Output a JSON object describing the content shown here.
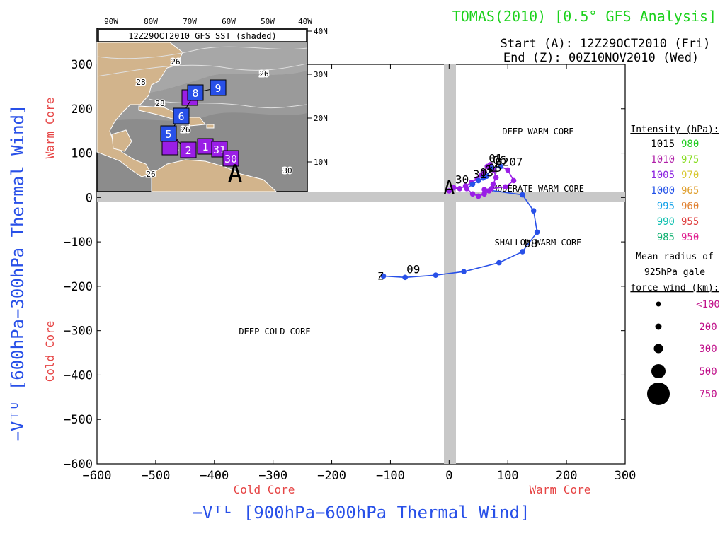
{
  "header": {
    "title": "TOMAS(2010) [0.5° GFS Analysis]",
    "start": "Start (A): 12Z29OCT2010 (Fri)",
    "end": "End (Z): 00Z10NOV2010 (Wed)"
  },
  "chart_data": {
    "type": "line",
    "xlabel": "−Vᵀᴸ [900hPa−600hPa Thermal Wind]",
    "ylabel": "−Vᵀᵁ [600hPa−300hPa Thermal Wind]",
    "xlim": [
      -600,
      300
    ],
    "ylim": [
      -600,
      300
    ],
    "xticks": [
      -600,
      -500,
      -400,
      -300,
      -200,
      -100,
      0,
      100,
      200,
      300
    ],
    "yticks": [
      -600,
      -500,
      -400,
      -300,
      -200,
      -100,
      0,
      100,
      200,
      300
    ],
    "xtick_labels": [
      "−600",
      "−500",
      "−400",
      "−300",
      "−200",
      "−100",
      "0",
      "100",
      "200",
      "300"
    ],
    "ytick_labels": [
      "−600",
      "−500",
      "−400",
      "−300",
      "−200",
      "−100",
      "0",
      "100",
      "200",
      "300"
    ],
    "x_core_labels": {
      "negative": "Cold Core",
      "positive": "Warm Core"
    },
    "y_core_labels": {
      "negative": "Cold Core",
      "positive": "Warm Core"
    },
    "regions": [
      "DEEP WARM CORE",
      "MODERATE WARM CORE",
      "SHALLOW WARM-CORE",
      "DEEP COLD CORE"
    ],
    "track": [
      {
        "x": 0,
        "y": 15,
        "color": "#9a1ee6",
        "label": "A"
      },
      {
        "x": 8,
        "y": 22,
        "color": "#9a1ee6",
        "label": "30"
      },
      {
        "x": 18,
        "y": 20,
        "color": "#9a1ee6"
      },
      {
        "x": 28,
        "y": 26,
        "color": "#9a1ee6"
      },
      {
        "x": 38,
        "y": 34,
        "color": "#9a1ee6",
        "label": "31"
      },
      {
        "x": 48,
        "y": 42,
        "color": "#9a1ee6"
      },
      {
        "x": 55,
        "y": 50,
        "color": "#9a1ee6"
      },
      {
        "x": 60,
        "y": 58,
        "color": "#9a1ee6"
      },
      {
        "x": 65,
        "y": 70,
        "color": "#9a1ee6",
        "label": "01"
      },
      {
        "x": 70,
        "y": 74,
        "color": "#9a1ee6"
      },
      {
        "x": 76,
        "y": 62,
        "color": "#9a1ee6",
        "label": "02"
      },
      {
        "x": 80,
        "y": 45,
        "color": "#9a1ee6"
      },
      {
        "x": 75,
        "y": 30,
        "color": "#9a1ee6"
      },
      {
        "x": 68,
        "y": 15,
        "color": "#9a1ee6"
      },
      {
        "x": 60,
        "y": 8,
        "color": "#9a1ee6"
      },
      {
        "x": 50,
        "y": 3,
        "color": "#9a1ee6"
      },
      {
        "x": 40,
        "y": 8,
        "color": "#9a1ee6"
      },
      {
        "x": 30,
        "y": 20,
        "color": "#9a1ee6"
      },
      {
        "x": 40,
        "y": 30,
        "color": "#2850e8"
      },
      {
        "x": 50,
        "y": 38,
        "color": "#2850e8",
        "label": "03"
      },
      {
        "x": 58,
        "y": 44,
        "color": "#2850e8",
        "label": "04"
      },
      {
        "x": 64,
        "y": 48,
        "color": "#2850e8",
        "label": "05"
      },
      {
        "x": 72,
        "y": 66,
        "color": "#2850e8",
        "label": "06"
      },
      {
        "x": 88,
        "y": 70,
        "color": "#2850e8"
      },
      {
        "x": 100,
        "y": 62,
        "color": "#9a1ee6",
        "label": "07"
      },
      {
        "x": 110,
        "y": 38,
        "color": "#9a1ee6"
      },
      {
        "x": 96,
        "y": 24,
        "color": "#9a1ee6"
      },
      {
        "x": 72,
        "y": 20,
        "color": "#9a1ee6"
      },
      {
        "x": 60,
        "y": 18,
        "color": "#9a1ee6"
      },
      {
        "x": 125,
        "y": 6,
        "color": "#2850e8"
      },
      {
        "x": 144,
        "y": -30,
        "color": "#2850e8"
      },
      {
        "x": 150,
        "y": -78,
        "color": "#2850e8"
      },
      {
        "x": 125,
        "y": -122,
        "color": "#2850e8",
        "label": "08"
      },
      {
        "x": 85,
        "y": -147,
        "color": "#2850e8"
      },
      {
        "x": 25,
        "y": -167,
        "color": "#2850e8"
      },
      {
        "x": -23,
        "y": -175,
        "color": "#2850e8"
      },
      {
        "x": -75,
        "y": -180,
        "color": "#2850e8",
        "label": "09"
      },
      {
        "x": -112,
        "y": -177,
        "color": "#2850e8"
      }
    ],
    "endpoint_labels": {
      "start": "A",
      "end": "Z"
    }
  },
  "legend": {
    "intensity_title": "Intensity (hPa):",
    "intensity_rows": [
      {
        "left": "1015",
        "left_color": "#000000",
        "right": "980",
        "right_color": "#22cc22"
      },
      {
        "left": "1010",
        "left_color": "#b01ea8",
        "right": "975",
        "right_color": "#88dd22"
      },
      {
        "left": "1005",
        "left_color": "#8a20e0",
        "right": "970",
        "right_color": "#d8c830"
      },
      {
        "left": "1000",
        "left_color": "#2050e8",
        "right": "965",
        "right_color": "#e0a030"
      },
      {
        "left": "995",
        "left_color": "#10a0e8",
        "right": "960",
        "right_color": "#e08030"
      },
      {
        "left": "990",
        "left_color": "#10c0b0",
        "right": "955",
        "right_color": "#e04040"
      },
      {
        "left": "985",
        "left_color": "#10b070",
        "right": "950",
        "right_color": "#e02090"
      }
    ],
    "radius_title": [
      "Mean radius of",
      "925hPa gale",
      "force wind (km):"
    ],
    "radius_rows": [
      "<100",
      "200",
      "300",
      "500",
      "750"
    ],
    "radius_color": "#c0108a"
  },
  "inset": {
    "title": "12Z29OCT2010 GFS SST (shaded)",
    "lon_labels": [
      "90W",
      "80W",
      "70W",
      "60W",
      "50W",
      "40W"
    ],
    "lat_labels": [
      "40N",
      "30N",
      "20N",
      "10N"
    ],
    "contour_labels": [
      "26",
      "26",
      "28",
      "26",
      "30",
      "28",
      "28",
      "26"
    ],
    "track_boxes": [
      {
        "label": "9",
        "color": "#2850e8"
      },
      {
        "label": "8",
        "color": "#2850e8"
      },
      {
        "label": "6",
        "color": "#2850e8"
      },
      {
        "label": "5",
        "color": "#2850e8"
      },
      {
        "label": "2",
        "color": "#9a1ee6"
      },
      {
        "label": "1",
        "color": "#9a1ee6"
      },
      {
        "label": "31",
        "color": "#9a1ee6"
      },
      {
        "label": "30",
        "color": "#9a1ee6"
      }
    ],
    "start_label": "A"
  }
}
